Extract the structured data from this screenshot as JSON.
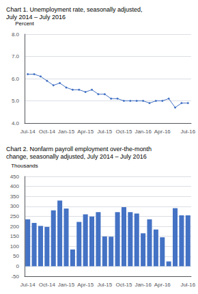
{
  "chart_data": [
    {
      "type": "line",
      "title": "Chart 1. Unemployment rate, seasonally adjusted,",
      "subtitle": "July 2014 – July 2016",
      "ylabel": "Percent",
      "categories": [
        "Jul-14",
        null,
        null,
        "Oct-14",
        null,
        null,
        "Jan-15",
        null,
        null,
        "Apr-15",
        null,
        null,
        "Jul-15",
        null,
        null,
        "Oct-15",
        null,
        null,
        "Jan-16",
        null,
        null,
        "Apr-16",
        null,
        null,
        null,
        "Jul-16"
      ],
      "values": [
        6.2,
        6.2,
        6.1,
        5.9,
        5.7,
        5.8,
        5.6,
        5.5,
        5.5,
        5.4,
        5.5,
        5.3,
        5.3,
        5.1,
        5.1,
        5.0,
        5.0,
        5.0,
        5.0,
        4.9,
        5.0,
        5.0,
        5.1,
        4.7,
        4.9,
        4.9
      ],
      "color": "#4472C4",
      "marker": "circle",
      "ylim": [
        4.0,
        8.0
      ],
      "yticks": [
        {
          "value": 4.0,
          "label": "4.0"
        },
        {
          "value": 5.0,
          "label": "5.0"
        },
        {
          "value": 6.0,
          "label": "6.0"
        },
        {
          "value": 7.0,
          "label": "7.0"
        },
        {
          "value": 8.0,
          "label": "8.0"
        }
      ],
      "grid": true
    },
    {
      "type": "bar",
      "title": "Chart 2. Nonfarm payroll employment over-the-month",
      "subtitle": "change, seasonally adjusted, July 2014 – July 2016",
      "ylabel": "Thousands",
      "categories": [
        "Jul-14",
        null,
        null,
        "Oct-14",
        null,
        null,
        "Jan-15",
        null,
        null,
        "Apr-15",
        null,
        null,
        "Jul-15",
        null,
        null,
        "Oct-15",
        null,
        null,
        "Jan-16",
        null,
        null,
        "Apr-16",
        null,
        null,
        null,
        "Jul-16"
      ],
      "values": [
        235,
        217,
        202,
        197,
        280,
        329,
        289,
        84,
        222,
        260,
        249,
        271,
        149,
        148,
        271,
        296,
        271,
        264,
        165,
        235,
        184,
        145,
        24,
        291,
        255,
        255
      ],
      "color": "#4472C4",
      "ylim": [
        -50,
        450
      ],
      "yticks": [
        -50,
        0,
        50,
        100,
        150,
        200,
        250,
        300,
        350,
        400,
        450
      ],
      "grid": true
    }
  ]
}
